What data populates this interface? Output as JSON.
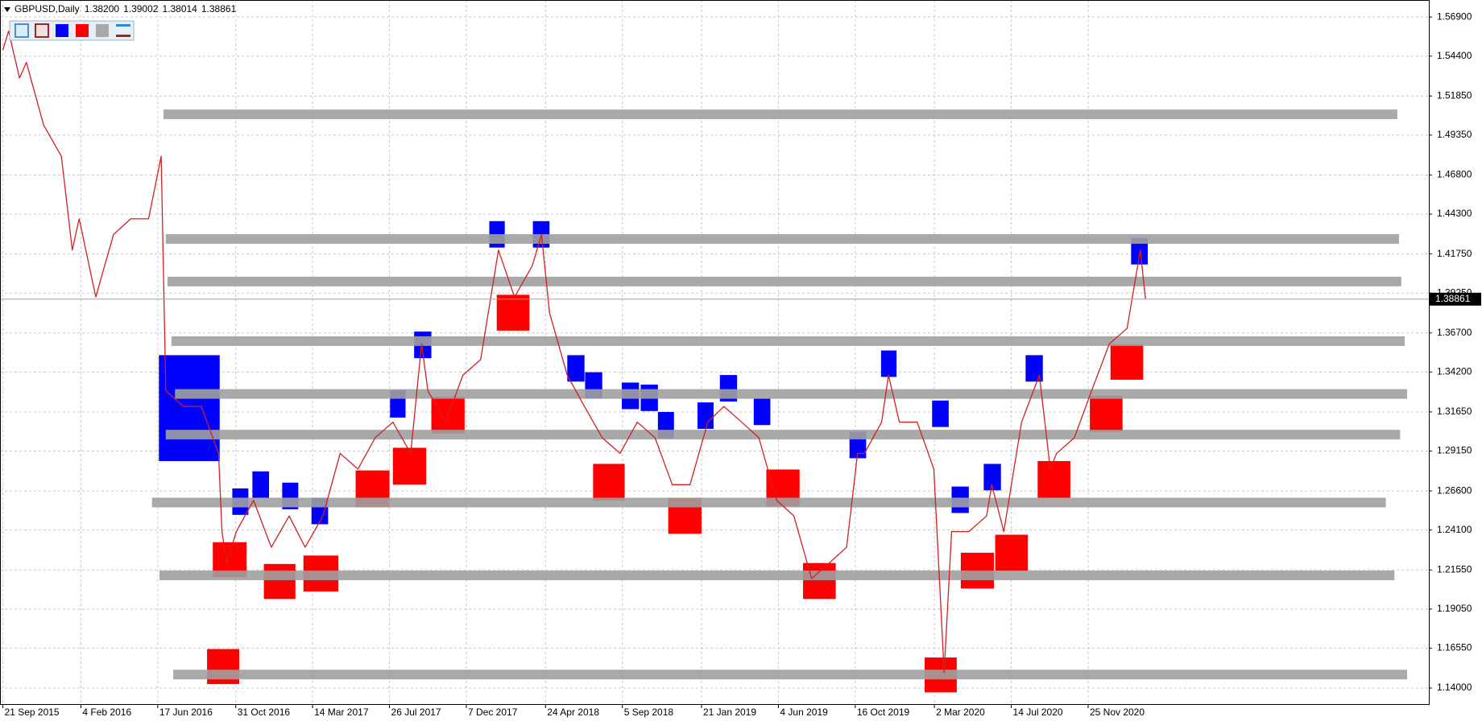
{
  "chart_data": {
    "type": "line",
    "title": "GBPUSD,Daily",
    "ohlc": [
      "1.38200",
      "1.39002",
      "1.38014",
      "1.38861"
    ],
    "color": "#d02020",
    "x": [
      "2015-09-21",
      "2015-10-01",
      "2015-10-20",
      "2015-11-01",
      "2015-12-01",
      "2016-01-01",
      "2016-01-20",
      "2016-02-01",
      "2016-03-01",
      "2016-04-01",
      "2016-05-01",
      "2016-06-01",
      "2016-06-23",
      "2016-07-01",
      "2016-08-01",
      "2016-09-01",
      "2016-10-01",
      "2016-10-07",
      "2016-10-15",
      "2016-11-01",
      "2016-12-01",
      "2017-01-01",
      "2017-02-01",
      "2017-03-01",
      "2017-04-01",
      "2017-05-01",
      "2017-06-01",
      "2017-07-01",
      "2017-08-01",
      "2017-09-01",
      "2017-09-20",
      "2017-10-01",
      "2017-11-01",
      "2017-12-01",
      "2018-01-01",
      "2018-02-01",
      "2018-03-01",
      "2018-04-01",
      "2018-04-17",
      "2018-05-01",
      "2018-06-01",
      "2018-07-01",
      "2018-08-01",
      "2018-09-01",
      "2018-10-01",
      "2018-11-01",
      "2018-12-01",
      "2019-01-01",
      "2019-02-01",
      "2019-03-01",
      "2019-04-01",
      "2019-05-01",
      "2019-06-01",
      "2019-07-01",
      "2019-08-01",
      "2019-09-01",
      "2019-10-01",
      "2019-10-20",
      "2019-11-01",
      "2019-12-01",
      "2019-12-13",
      "2020-01-01",
      "2020-02-01",
      "2020-03-01",
      "2020-03-19",
      "2020-04-01",
      "2020-05-01",
      "2020-06-01",
      "2020-06-10",
      "2020-07-01",
      "2020-08-01",
      "2020-09-01",
      "2020-09-20",
      "2020-10-01",
      "2020-11-01",
      "2020-12-01",
      "2021-01-01",
      "2021-02-01",
      "2021-02-24",
      "2021-03-05"
    ],
    "values": [
      1.548,
      1.56,
      1.53,
      1.54,
      1.5,
      1.48,
      1.42,
      1.44,
      1.39,
      1.43,
      1.44,
      1.44,
      1.48,
      1.33,
      1.32,
      1.32,
      1.29,
      1.24,
      1.22,
      1.24,
      1.26,
      1.23,
      1.25,
      1.23,
      1.25,
      1.29,
      1.28,
      1.3,
      1.31,
      1.29,
      1.36,
      1.33,
      1.31,
      1.34,
      1.35,
      1.42,
      1.39,
      1.41,
      1.43,
      1.38,
      1.34,
      1.32,
      1.3,
      1.29,
      1.31,
      1.3,
      1.27,
      1.27,
      1.31,
      1.32,
      1.31,
      1.3,
      1.26,
      1.25,
      1.21,
      1.22,
      1.23,
      1.29,
      1.29,
      1.31,
      1.34,
      1.31,
      1.31,
      1.28,
      1.15,
      1.24,
      1.24,
      1.25,
      1.27,
      1.24,
      1.31,
      1.34,
      1.28,
      1.29,
      1.3,
      1.33,
      1.36,
      1.37,
      1.42,
      1.38861
    ],
    "last_price": {
      "value": 1.38861,
      "label": "1.38861"
    },
    "xlim": [
      "2015-09-16",
      "2022-07-12"
    ],
    "ylim": [
      1.1297,
      1.5799
    ],
    "yticks": [
      {
        "value": 1.569,
        "label": "1.56900"
      },
      {
        "value": 1.544,
        "label": "1.54400"
      },
      {
        "value": 1.5185,
        "label": "1.51850"
      },
      {
        "value": 1.4935,
        "label": "1.49350"
      },
      {
        "value": 1.468,
        "label": "1.46800"
      },
      {
        "value": 1.443,
        "label": "1.44300"
      },
      {
        "value": 1.4175,
        "label": "1.41750"
      },
      {
        "value": 1.3925,
        "label": "1.39250"
      },
      {
        "value": 1.367,
        "label": "1.36700"
      },
      {
        "value": 1.342,
        "label": "1.34200"
      },
      {
        "value": 1.3165,
        "label": "1.31650"
      },
      {
        "value": 1.2915,
        "label": "1.29150"
      },
      {
        "value": 1.266,
        "label": "1.26600"
      },
      {
        "value": 1.241,
        "label": "1.24100"
      },
      {
        "value": 1.2155,
        "label": "1.21550"
      },
      {
        "value": 1.1905,
        "label": "1.19050"
      },
      {
        "value": 1.1655,
        "label": "1.16550"
      },
      {
        "value": 1.14,
        "label": "1.14000"
      }
    ],
    "xticks": [
      {
        "value": "2015-09-21",
        "label": "21 Sep 2015"
      },
      {
        "value": "2016-02-04",
        "label": "4 Feb 2016"
      },
      {
        "value": "2016-06-17",
        "label": "17 Jun 2016"
      },
      {
        "value": "2016-10-31",
        "label": "31 Oct 2016"
      },
      {
        "value": "2017-03-14",
        "label": "14 Mar 2017"
      },
      {
        "value": "2017-07-26",
        "label": "26 Jul 2017"
      },
      {
        "value": "2017-12-07",
        "label": "7 Dec 2017"
      },
      {
        "value": "2018-04-24",
        "label": "24 Apr 2018"
      },
      {
        "value": "2018-09-05",
        "label": "5 Sep 2018"
      },
      {
        "value": "2019-01-21",
        "label": "21 Jan 2019"
      },
      {
        "value": "2019-06-04",
        "label": "4 Jun 2019"
      },
      {
        "value": "2019-10-16",
        "label": "16 Oct 2019"
      },
      {
        "value": "2020-03-02",
        "label": "2 Mar 2020"
      },
      {
        "value": "2020-07-14",
        "label": "14 Jul 2020"
      },
      {
        "value": "2020-11-25",
        "label": "25 Nov 2020"
      }
    ],
    "grid": true,
    "blue_zone_color": "#0000ff",
    "red_zone_color": "#ff0000",
    "level_color": "#a0a0a0",
    "blue_zones": [
      {
        "from": "2016-06-19",
        "to": "2016-10-03",
        "top": 1.3528,
        "bottom": 1.2851
      },
      {
        "from": "2016-10-25",
        "to": "2016-11-22",
        "top": 1.2676,
        "bottom": 1.2507
      },
      {
        "from": "2016-11-29",
        "to": "2016-12-28",
        "top": 1.2785,
        "bottom": 1.2616
      },
      {
        "from": "2017-01-20",
        "to": "2017-02-17",
        "top": 1.2713,
        "bottom": 1.2543
      },
      {
        "from": "2017-03-12",
        "to": "2017-04-10",
        "top": 1.2616,
        "bottom": 1.2447
      },
      {
        "from": "2017-07-27",
        "to": "2017-08-23",
        "top": 1.3304,
        "bottom": 1.3129
      },
      {
        "from": "2017-09-07",
        "to": "2017-10-07",
        "top": 1.3679,
        "bottom": 1.3509
      },
      {
        "from": "2018-01-16",
        "to": "2018-02-12",
        "top": 1.4385,
        "bottom": 1.4216
      },
      {
        "from": "2018-04-02",
        "to": "2018-05-01",
        "top": 1.4385,
        "bottom": 1.4216
      },
      {
        "from": "2018-06-01",
        "to": "2018-07-01",
        "top": 1.3528,
        "bottom": 1.3359
      },
      {
        "from": "2018-07-02",
        "to": "2018-08-01",
        "top": 1.3419,
        "bottom": 1.325
      },
      {
        "from": "2018-09-04",
        "to": "2018-10-04",
        "top": 1.3353,
        "bottom": 1.3183
      },
      {
        "from": "2018-10-07",
        "to": "2018-11-06",
        "top": 1.334,
        "bottom": 1.3171
      },
      {
        "from": "2018-11-06",
        "to": "2018-12-04",
        "top": 1.3165,
        "bottom": 1.2996
      },
      {
        "from": "2019-01-14",
        "to": "2019-02-11",
        "top": 1.3226,
        "bottom": 1.3057
      },
      {
        "from": "2019-02-22",
        "to": "2019-03-24",
        "top": 1.3401,
        "bottom": 1.3232
      },
      {
        "from": "2019-04-22",
        "to": "2019-05-21",
        "top": 1.325,
        "bottom": 1.3081
      },
      {
        "from": "2019-10-06",
        "to": "2019-11-04",
        "top": 1.3039,
        "bottom": 1.2869
      },
      {
        "from": "2019-11-30",
        "to": "2019-12-27",
        "top": 1.3558,
        "bottom": 1.3389
      },
      {
        "from": "2020-02-27",
        "to": "2020-03-27",
        "top": 1.3238,
        "bottom": 1.3069
      },
      {
        "from": "2020-04-01",
        "to": "2020-05-01",
        "top": 1.2688,
        "bottom": 1.2519
      },
      {
        "from": "2020-05-27",
        "to": "2020-06-26",
        "top": 1.2833,
        "bottom": 1.2664
      },
      {
        "from": "2020-08-08",
        "to": "2020-09-07",
        "top": 1.3528,
        "bottom": 1.3359
      },
      {
        "from": "2021-02-08",
        "to": "2021-03-09",
        "top": 1.4277,
        "bottom": 1.4108
      }
    ],
    "red_zones": [
      {
        "from": "2016-09-21",
        "to": "2016-11-19",
        "top": 1.2332,
        "bottom": 1.2108
      },
      {
        "from": "2016-09-11",
        "to": "2016-11-06",
        "top": 1.1649,
        "bottom": 1.1425
      },
      {
        "from": "2016-12-19",
        "to": "2017-02-12",
        "top": 1.2193,
        "bottom": 1.1969
      },
      {
        "from": "2017-02-26",
        "to": "2017-04-28",
        "top": 1.2247,
        "bottom": 1.2017
      },
      {
        "from": "2017-05-28",
        "to": "2017-07-26",
        "top": 1.2791,
        "bottom": 1.2555
      },
      {
        "from": "2017-08-01",
        "to": "2017-09-28",
        "top": 1.2936,
        "bottom": 1.27
      },
      {
        "from": "2017-10-07",
        "to": "2017-12-04",
        "top": 1.3262,
        "bottom": 1.3027
      },
      {
        "from": "2018-01-29",
        "to": "2018-03-27",
        "top": 1.3914,
        "bottom": 1.3685
      },
      {
        "from": "2018-07-16",
        "to": "2018-09-09",
        "top": 1.2833,
        "bottom": 1.2598
      },
      {
        "from": "2018-11-24",
        "to": "2019-01-21",
        "top": 1.2616,
        "bottom": 1.2386
      },
      {
        "from": "2019-05-14",
        "to": "2019-07-11",
        "top": 1.2797,
        "bottom": 1.2561
      },
      {
        "from": "2019-07-17",
        "to": "2019-09-12",
        "top": 1.2199,
        "bottom": 1.1969
      },
      {
        "from": "2020-02-14",
        "to": "2020-04-10",
        "top": 1.1595,
        "bottom": 1.1372
      },
      {
        "from": "2020-04-17",
        "to": "2020-06-14",
        "top": 1.2265,
        "bottom": 1.2036
      },
      {
        "from": "2020-06-16",
        "to": "2020-08-12",
        "top": 1.238,
        "bottom": 1.215
      },
      {
        "from": "2020-08-29",
        "to": "2020-10-25",
        "top": 1.2851,
        "bottom": 1.2616
      },
      {
        "from": "2020-11-28",
        "to": "2021-01-24",
        "top": 1.3268,
        "bottom": 1.3039
      },
      {
        "from": "2021-01-03",
        "to": "2021-03-01",
        "top": 1.36,
        "bottom": 1.3371
      }
    ],
    "levels": [
      {
        "price": 1.5068,
        "from": "2016-06-27",
        "to": "2022-05-18"
      },
      {
        "price": 1.4271,
        "from": "2016-07-01",
        "to": "2022-05-21"
      },
      {
        "price": 1.3999,
        "from": "2016-07-04",
        "to": "2022-05-25"
      },
      {
        "price": 1.3618,
        "from": "2016-07-11",
        "to": "2022-05-31"
      },
      {
        "price": 1.328,
        "from": "2016-07-17",
        "to": "2022-06-04"
      },
      {
        "price": 1.302,
        "from": "2016-07-01",
        "to": "2022-05-23"
      },
      {
        "price": 1.2586,
        "from": "2016-06-07",
        "to": "2022-04-28"
      },
      {
        "price": 1.212,
        "from": "2016-06-20",
        "to": "2022-05-13"
      },
      {
        "price": 1.1486,
        "from": "2016-07-14",
        "to": "2022-06-04"
      }
    ]
  }
}
